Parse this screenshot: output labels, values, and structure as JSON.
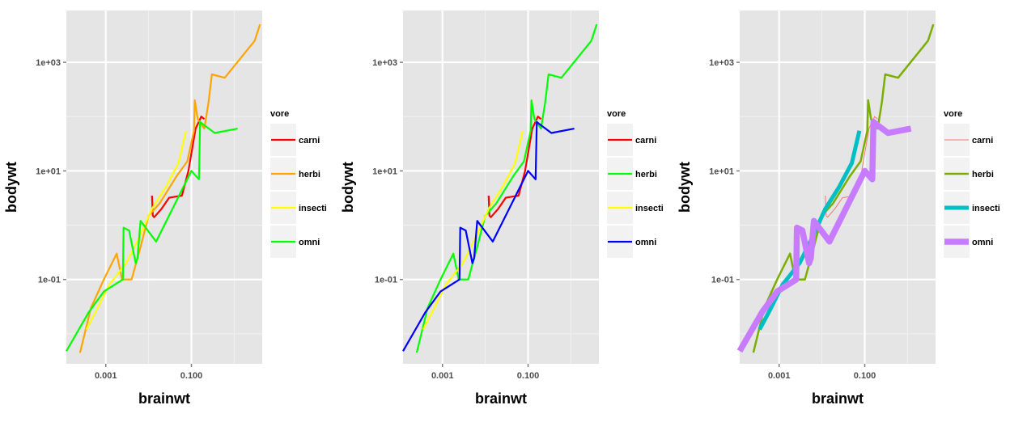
{
  "chart_data": [
    {
      "type": "line",
      "xlabel": "brainwt",
      "ylabel": "bodywt",
      "xscale": "log10",
      "yscale": "log10",
      "xlim": [
        0.00012,
        4.5
      ],
      "ylim": [
        0.0028,
        9000
      ],
      "x_ticks": [
        {
          "value": 0.001,
          "label": "0.001"
        },
        {
          "value": 0.1,
          "label": "0.100"
        }
      ],
      "y_ticks": [
        {
          "value": 0.1,
          "label": "1e-01"
        },
        {
          "value": 10,
          "label": "1e+01"
        },
        {
          "value": 1000,
          "label": "1e+03"
        }
      ],
      "grid": true,
      "legend": {
        "title": "vore",
        "position": "right"
      },
      "series": [
        {
          "name": "carni",
          "color": "#ff0000",
          "width": 2.2,
          "x": [
            0.012,
            0.0125,
            0.0135,
            0.02,
            0.03,
            0.06,
            0.085,
            0.125,
            0.17,
            0.2
          ],
          "y": [
            3.5,
            1.5,
            1.4,
            2.0,
            3.2,
            3.5,
            10,
            60,
            100,
            90
          ]
        },
        {
          "name": "herbi",
          "color": "#ffa500",
          "width": 2.2,
          "x": [
            0.00025,
            0.00045,
            0.0009,
            0.0018,
            0.0024,
            0.004,
            0.0065,
            0.01,
            0.018,
            0.045,
            0.08,
            0.115,
            0.12,
            0.14,
            0.2,
            0.25,
            0.3,
            0.6,
            3.0,
            4.0
          ],
          "y": [
            0.0045,
            0.03,
            0.1,
            0.3,
            0.1,
            0.1,
            0.4,
            1.5,
            2.5,
            8,
            15,
            55,
            200,
            90,
            60,
            180,
            600,
            520,
            2500,
            5000
          ]
        },
        {
          "name": "insecti",
          "color": "#ffff00",
          "width": 2.2,
          "x": [
            0.00035,
            0.00065,
            0.0012,
            0.003,
            0.006,
            0.012,
            0.025,
            0.05,
            0.075
          ],
          "y": [
            0.012,
            0.03,
            0.08,
            0.2,
            0.6,
            2.0,
            5.0,
            14,
            55
          ]
        },
        {
          "name": "omni",
          "color": "#00ff00",
          "width": 2.2,
          "x": [
            0.00012,
            0.0004,
            0.0009,
            0.0025,
            0.0026,
            0.0035,
            0.005,
            0.0055,
            0.0065,
            0.015,
            0.1,
            0.15,
            0.16,
            0.175,
            0.35,
            1.2
          ],
          "y": [
            0.0048,
            0.025,
            0.06,
            0.1,
            0.9,
            0.8,
            0.2,
            0.25,
            1.2,
            0.5,
            10,
            7,
            80,
            75,
            50,
            60
          ]
        }
      ]
    },
    {
      "type": "line",
      "xlabel": "brainwt",
      "ylabel": "bodywt",
      "xscale": "log10",
      "yscale": "log10",
      "xlim": [
        0.00012,
        4.5
      ],
      "ylim": [
        0.0028,
        9000
      ],
      "x_ticks": [
        {
          "value": 0.001,
          "label": "0.001"
        },
        {
          "value": 0.1,
          "label": "0.100"
        }
      ],
      "y_ticks": [
        {
          "value": 0.1,
          "label": "1e-01"
        },
        {
          "value": 10,
          "label": "1e+01"
        },
        {
          "value": 1000,
          "label": "1e+03"
        }
      ],
      "grid": true,
      "legend": {
        "title": "vore",
        "position": "right"
      },
      "series": [
        {
          "name": "carni",
          "color": "#ff0000",
          "width": 2.2,
          "x": [
            0.012,
            0.0125,
            0.0135,
            0.02,
            0.03,
            0.06,
            0.085,
            0.125,
            0.17,
            0.2
          ],
          "y": [
            3.5,
            1.5,
            1.4,
            2.0,
            3.2,
            3.5,
            10,
            60,
            100,
            90
          ]
        },
        {
          "name": "herbi",
          "color": "#00ff00",
          "width": 2.2,
          "x": [
            0.00025,
            0.00045,
            0.0009,
            0.0018,
            0.0024,
            0.004,
            0.0065,
            0.01,
            0.018,
            0.045,
            0.08,
            0.115,
            0.12,
            0.14,
            0.2,
            0.25,
            0.3,
            0.6,
            3.0,
            4.0
          ],
          "y": [
            0.0045,
            0.03,
            0.1,
            0.3,
            0.1,
            0.1,
            0.4,
            1.5,
            2.5,
            8,
            15,
            55,
            200,
            90,
            60,
            180,
            600,
            520,
            2500,
            5000
          ]
        },
        {
          "name": "insecti",
          "color": "#ffff00",
          "width": 2.2,
          "x": [
            0.00035,
            0.00065,
            0.0012,
            0.003,
            0.006,
            0.012,
            0.025,
            0.05,
            0.075
          ],
          "y": [
            0.012,
            0.03,
            0.08,
            0.2,
            0.6,
            2.0,
            5.0,
            14,
            55
          ]
        },
        {
          "name": "omni",
          "color": "#0000ff",
          "width": 2.2,
          "x": [
            0.00012,
            0.0004,
            0.0009,
            0.0025,
            0.0026,
            0.0035,
            0.005,
            0.0055,
            0.0065,
            0.015,
            0.1,
            0.15,
            0.16,
            0.175,
            0.35,
            1.2
          ],
          "y": [
            0.0048,
            0.025,
            0.06,
            0.1,
            0.9,
            0.8,
            0.2,
            0.25,
            1.2,
            0.5,
            10,
            7,
            80,
            75,
            50,
            60
          ]
        }
      ]
    },
    {
      "type": "line",
      "xlabel": "brainwt",
      "ylabel": "bodywt",
      "xscale": "log10",
      "yscale": "log10",
      "xlim": [
        0.00012,
        4.5
      ],
      "ylim": [
        0.0028,
        9000
      ],
      "x_ticks": [
        {
          "value": 0.001,
          "label": "0.001"
        },
        {
          "value": 0.1,
          "label": "0.100"
        }
      ],
      "y_ticks": [
        {
          "value": 0.1,
          "label": "1e-01"
        },
        {
          "value": 10,
          "label": "1e+01"
        },
        {
          "value": 1000,
          "label": "1e+03"
        }
      ],
      "grid": true,
      "legend": {
        "title": "vore",
        "position": "right"
      },
      "series": [
        {
          "name": "carni",
          "color": "#f8766d",
          "width": 1,
          "x": [
            0.012,
            0.0125,
            0.0135,
            0.02,
            0.03,
            0.06,
            0.085,
            0.125,
            0.17,
            0.2
          ],
          "y": [
            3.5,
            1.5,
            1.4,
            2.0,
            3.2,
            3.5,
            10,
            60,
            100,
            90
          ]
        },
        {
          "name": "herbi",
          "color": "#7cae00",
          "width": 2.5,
          "x": [
            0.00025,
            0.00045,
            0.0009,
            0.0018,
            0.0024,
            0.004,
            0.0065,
            0.01,
            0.018,
            0.045,
            0.08,
            0.115,
            0.12,
            0.14,
            0.2,
            0.25,
            0.3,
            0.6,
            3.0,
            4.0
          ],
          "y": [
            0.0045,
            0.03,
            0.1,
            0.3,
            0.1,
            0.1,
            0.4,
            1.5,
            2.5,
            8,
            15,
            55,
            200,
            90,
            60,
            180,
            600,
            520,
            2500,
            5000
          ]
        },
        {
          "name": "insecti",
          "color": "#00bfc4",
          "width": 5,
          "x": [
            0.00035,
            0.00065,
            0.0012,
            0.003,
            0.006,
            0.012,
            0.025,
            0.05,
            0.075
          ],
          "y": [
            0.012,
            0.03,
            0.08,
            0.2,
            0.6,
            2.0,
            5.0,
            14,
            55
          ]
        },
        {
          "name": "omni",
          "color": "#c77cff",
          "width": 7.5,
          "x": [
            0.00012,
            0.0004,
            0.0009,
            0.0025,
            0.0026,
            0.0035,
            0.005,
            0.0055,
            0.0065,
            0.015,
            0.1,
            0.15,
            0.16,
            0.175,
            0.35,
            1.2
          ],
          "y": [
            0.0048,
            0.025,
            0.06,
            0.1,
            0.9,
            0.8,
            0.2,
            0.25,
            1.2,
            0.5,
            10,
            7,
            80,
            75,
            50,
            60
          ]
        }
      ]
    }
  ]
}
